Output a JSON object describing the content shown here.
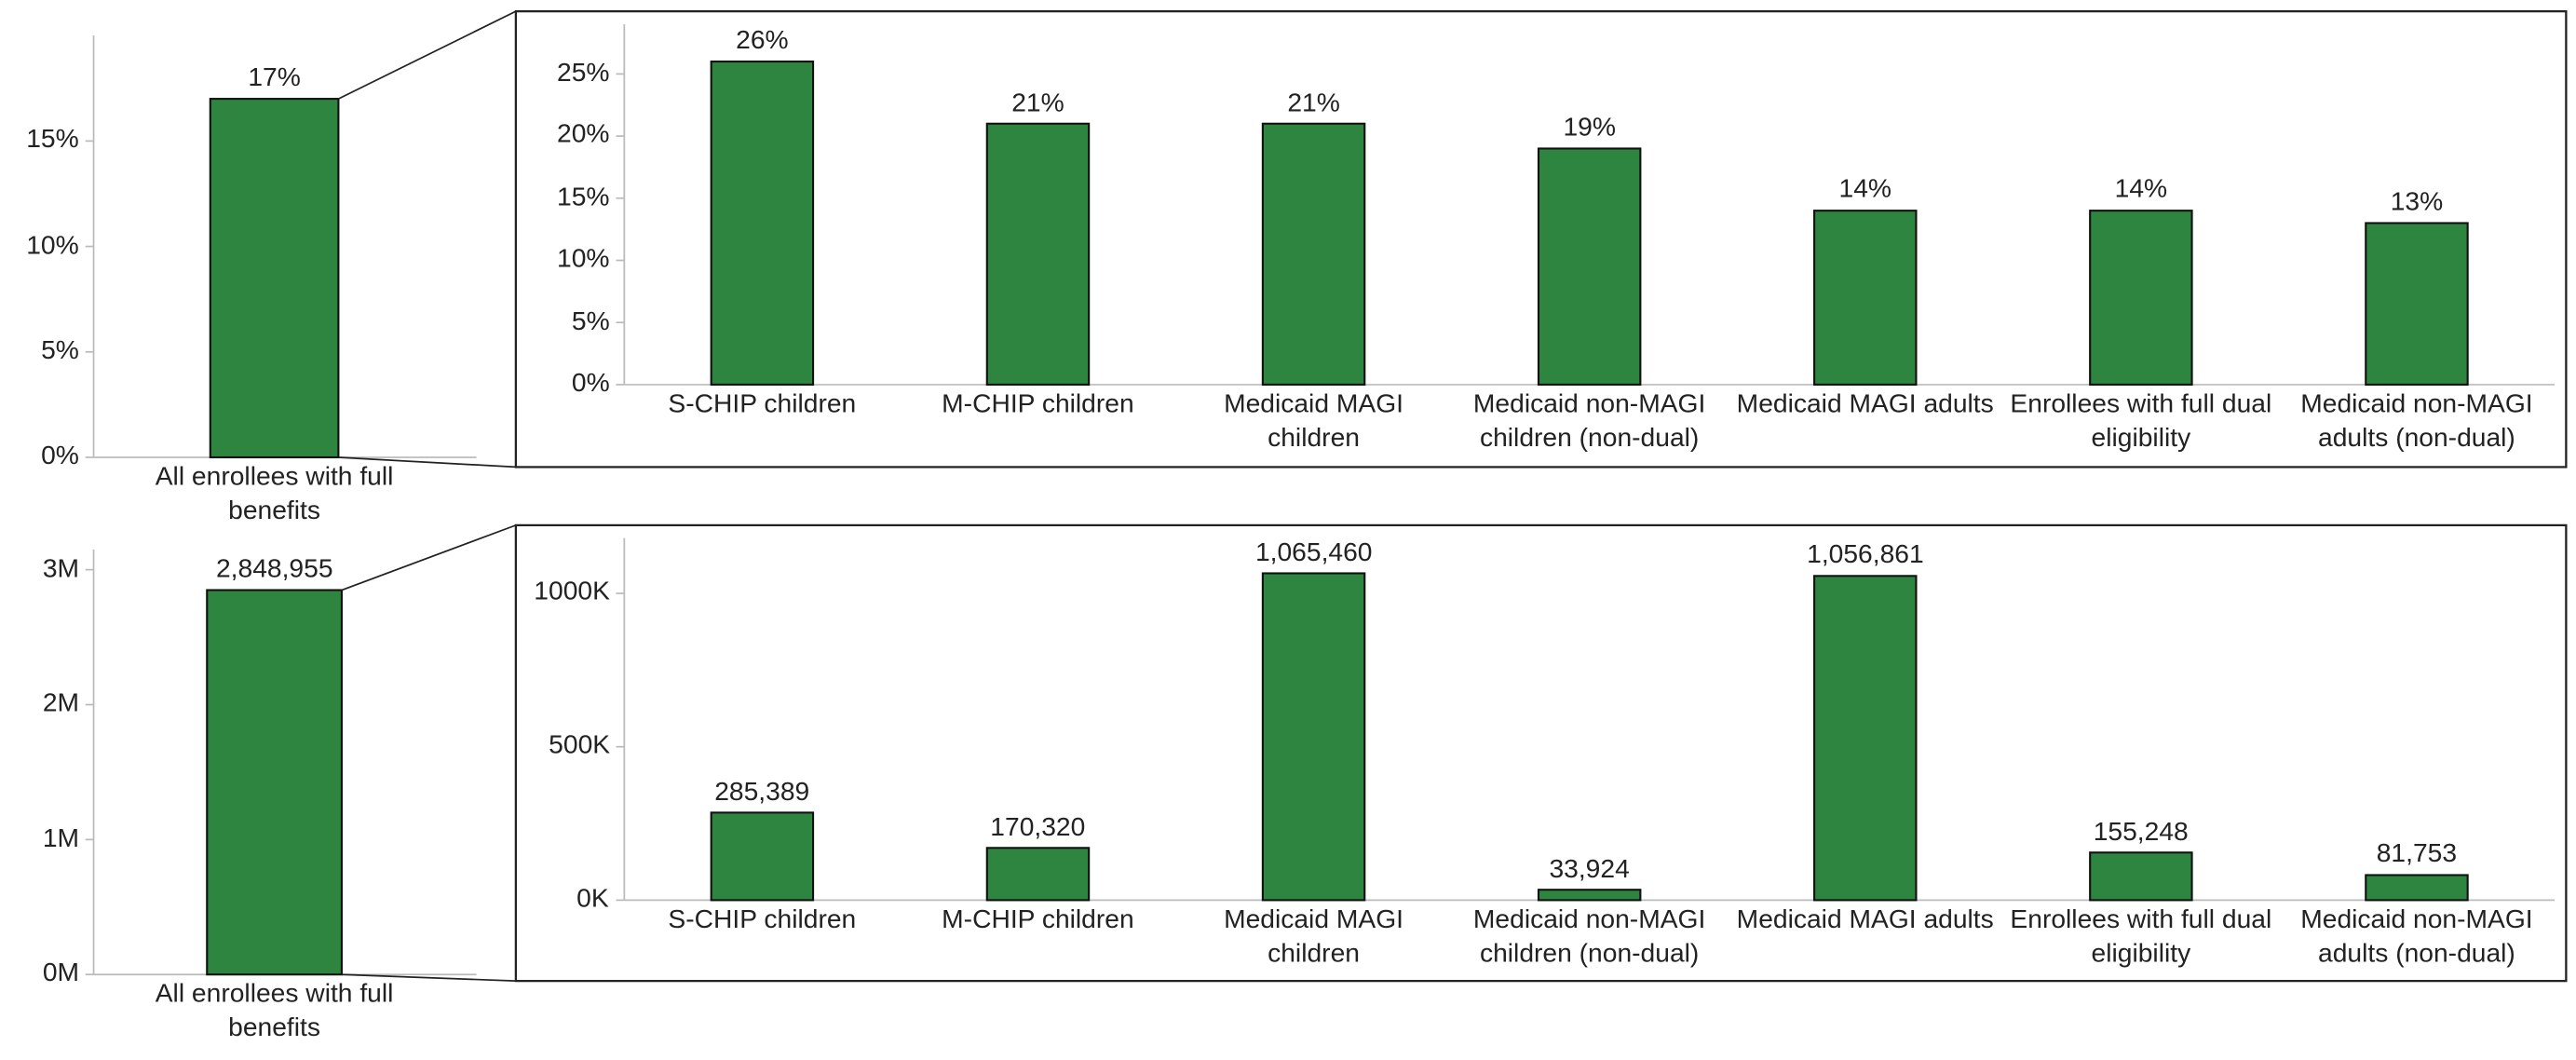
{
  "chart_data": [
    {
      "type": "bar",
      "categories": [
        "All enrollees with full benefits"
      ],
      "values": [
        17
      ],
      "value_labels": [
        "17%"
      ],
      "color": "#2e8540",
      "ylim": [
        0,
        20
      ],
      "yticks": [
        {
          "value": 0,
          "label": "0%"
        },
        {
          "value": 5,
          "label": "5%"
        },
        {
          "value": 10,
          "label": "10%"
        },
        {
          "value": 15,
          "label": "15%"
        }
      ]
    },
    {
      "type": "bar",
      "categories": [
        "S-CHIP children",
        "M-CHIP children",
        "Medicaid MAGI children",
        "Medicaid non-MAGI children (non-dual)",
        "Medicaid MAGI adults",
        "Enrollees with full dual eligibility",
        "Medicaid non-MAGI adults (non-dual)"
      ],
      "values": [
        26,
        21,
        21,
        19,
        14,
        14,
        13
      ],
      "value_labels": [
        "26%",
        "21%",
        "21%",
        "19%",
        "14%",
        "14%",
        "13%"
      ],
      "color": "#2e8540",
      "ylim": [
        0,
        29
      ],
      "yticks": [
        {
          "value": 0,
          "label": "0%"
        },
        {
          "value": 5,
          "label": "5%"
        },
        {
          "value": 10,
          "label": "10%"
        },
        {
          "value": 15,
          "label": "15%"
        },
        {
          "value": 20,
          "label": "20%"
        },
        {
          "value": 25,
          "label": "25%"
        }
      ]
    },
    {
      "type": "bar",
      "categories": [
        "All enrollees with full benefits"
      ],
      "values": [
        2848955
      ],
      "value_labels": [
        "2,848,955"
      ],
      "color": "#2e8540",
      "ylim": [
        0,
        3150000
      ],
      "yticks": [
        {
          "value": 0,
          "label": "0M"
        },
        {
          "value": 1000000,
          "label": "1M"
        },
        {
          "value": 2000000,
          "label": "2M"
        },
        {
          "value": 3000000,
          "label": "3M"
        }
      ]
    },
    {
      "type": "bar",
      "categories": [
        "S-CHIP children",
        "M-CHIP children",
        "Medicaid MAGI children",
        "Medicaid non-MAGI children (non-dual)",
        "Medicaid MAGI adults",
        "Enrollees with full dual eligibility",
        "Medicaid non-MAGI adults (non-dual)"
      ],
      "values": [
        285389,
        170320,
        1065460,
        33924,
        1056861,
        155248,
        81753
      ],
      "value_labels": [
        "285,389",
        "170,320",
        "1,065,460",
        "33,924",
        "1,056,861",
        "155,248",
        "81,753"
      ],
      "color": "#2e8540",
      "ylim": [
        0,
        1180000
      ],
      "yticks": [
        {
          "value": 0,
          "label": "0K"
        },
        {
          "value": 500000,
          "label": "500K"
        },
        {
          "value": 1000000,
          "label": "1000K"
        }
      ]
    }
  ]
}
